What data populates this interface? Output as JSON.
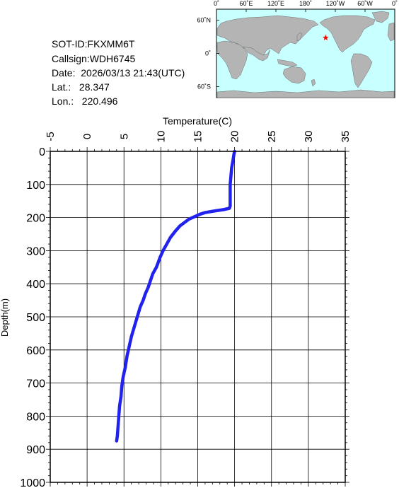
{
  "header": {
    "sot_id": "SOT-ID:FKXMM6T",
    "callsign": "Callsign:WDH6745",
    "date": "Date:  2026/03/13 21:43(UTC)",
    "lat": "Lat.:   28.347",
    "lon": "Lon.:   220.496"
  },
  "map": {
    "lon_labels": [
      "0˚",
      "60˚E",
      "120˚E",
      "180˚",
      "120˚W",
      "60˚W",
      "0˚"
    ],
    "lat_labels": [
      "60˚N",
      "0˚",
      "60˚S"
    ],
    "marker_lat": 28.347,
    "marker_lon": 220.496,
    "ocean_color": "#c8ffff",
    "land_color": "#b4b4b4",
    "marker_color": "#ff0000",
    "marker_icon": "red-star-icon"
  },
  "chart_data": {
    "type": "line",
    "xlabel": "Temperature(C)",
    "ylabel": "Depth(m)",
    "xlim": [
      -5,
      35
    ],
    "ylim": [
      0,
      1000
    ],
    "x_ticks": [
      "-5",
      "0",
      "5",
      "10",
      "15",
      "20",
      "25",
      "30",
      "35"
    ],
    "y_ticks": [
      "0",
      "100",
      "200",
      "300",
      "400",
      "500",
      "600",
      "700",
      "800",
      "900",
      "1000"
    ],
    "line_color": "#2222ee",
    "series": [
      {
        "depth": [
          0,
          10,
          25,
          50,
          75,
          100,
          125,
          150,
          165,
          172,
          176,
          180,
          185,
          190,
          198,
          205,
          215,
          225,
          240,
          260,
          280,
          300,
          320,
          350,
          370,
          390,
          410,
          430,
          450,
          470,
          500,
          530,
          560,
          590,
          620,
          650,
          680,
          710,
          740,
          770,
          800,
          830,
          860,
          875
        ],
        "temp": [
          20.0,
          19.9,
          19.8,
          19.6,
          19.5,
          19.4,
          19.4,
          19.4,
          19.4,
          19.3,
          18.5,
          17.3,
          16.0,
          15.3,
          14.5,
          13.8,
          13.2,
          12.6,
          12.0,
          11.3,
          10.8,
          10.3,
          9.9,
          9.4,
          8.9,
          8.6,
          8.3,
          7.9,
          7.6,
          7.2,
          6.8,
          6.4,
          6.0,
          5.7,
          5.4,
          5.2,
          4.9,
          4.7,
          4.6,
          4.4,
          4.3,
          4.2,
          4.1,
          4.0
        ]
      }
    ]
  }
}
